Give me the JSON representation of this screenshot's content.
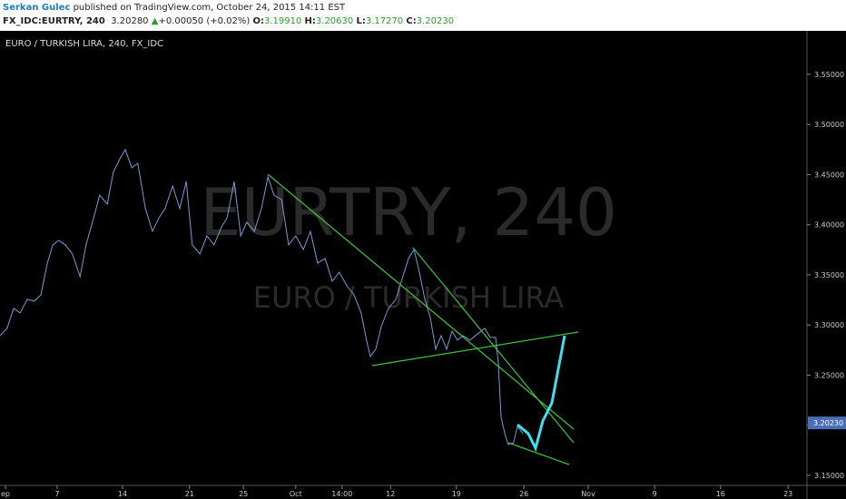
{
  "header": {
    "author": "Serkan Gulec",
    "published": "published on TradingView.com, October 24, 2015 14:11 EST",
    "symbol": "FX_IDC:EURTRY, 240",
    "last": "3.20280",
    "arrow": "▲",
    "change": "+0.00050 (+0.02%)",
    "o_label": "O:",
    "o": "3.19910",
    "h_label": "H:",
    "h": "3.20630",
    "l_label": "L:",
    "l": "3.17270",
    "c_label": "C:",
    "c": "3.20230"
  },
  "chart_data": {
    "type": "line",
    "legend_text": "EURO / TURKISH LIRA, 240, FX_IDC",
    "watermark": "EURTRY, 240",
    "watermark_sub": "EURO / TURKISH LIRA",
    "last_price_label": {
      "value": 3.2023,
      "label": "3.20230"
    },
    "x": [
      0,
      1.3,
      2.5,
      3.7,
      5,
      6.3,
      7.5,
      8.7,
      9.7,
      10.8,
      12,
      13.3,
      14.7,
      15.8,
      17.2,
      18.3,
      19.7,
      20.8,
      22,
      23,
      24.2,
      25.3,
      26.7,
      28,
      29.2,
      30.3,
      31.7,
      33,
      34.2,
      35.3,
      36.7,
      38,
      39.3,
      40.7,
      41.7,
      43,
      44.2,
      45.3,
      46.7,
      48,
      49.2,
      50.3,
      51.7,
      53,
      54.3,
      55.7,
      57,
      58.3,
      59.7,
      61,
      62.3,
      63.7,
      65,
      66.3,
      67.3,
      68,
      69,
      70,
      71.3,
      72.7,
      73.7,
      75,
      76,
      77,
      78,
      79,
      80,
      81,
      82,
      83,
      84,
      85,
      86.3,
      87.7,
      89,
      90,
      91,
      91.5,
      92,
      92.7,
      93.3,
      94.3,
      95,
      96
    ],
    "series": [
      {
        "color": "#7b9ad6",
        "values": [
          3.2894,
          3.2966,
          3.3165,
          3.312,
          3.3256,
          3.3238,
          3.3301,
          3.3618,
          3.3799,
          3.3844,
          3.3799,
          3.3708,
          3.3482,
          3.3799,
          3.407,
          3.4296,
          3.4206,
          3.4523,
          3.4658,
          3.4749,
          3.4568,
          3.4613,
          3.4161,
          3.3934,
          3.407,
          3.4161,
          3.4387,
          3.4161,
          3.4432,
          3.3799,
          3.3708,
          3.3889,
          3.3799,
          3.398,
          3.407,
          3.4432,
          3.3889,
          3.4025,
          3.3934,
          3.4161,
          3.4477,
          3.4296,
          3.4251,
          3.3799,
          3.3889,
          3.3753,
          3.3934,
          3.3618,
          3.3663,
          3.3437,
          3.3527,
          3.3391,
          3.3301,
          3.312,
          3.2848,
          3.2686,
          3.2758,
          3.2984,
          3.3165,
          3.3256,
          3.3437,
          3.3663,
          3.3753,
          3.3527,
          3.3256,
          3.3075,
          3.2758,
          3.2894,
          3.2758,
          3.2939,
          3.2848,
          3.2894,
          3.2848,
          3.2912,
          3.2966,
          3.2876,
          3.2876,
          3.2622,
          3.2079,
          3.1916,
          3.1808,
          3.1826,
          3.1989,
          3.1916
        ]
      }
    ],
    "xlim": [
      0,
      148
    ],
    "ylim": [
      3.14,
      3.5934
    ],
    "xticks": [
      {
        "value": 1,
        "label": "ep"
      },
      {
        "value": 10.5,
        "label": "7"
      },
      {
        "value": 22.5,
        "label": "14"
      },
      {
        "value": 34.8,
        "label": "21"
      },
      {
        "value": 44.7,
        "label": "25"
      },
      {
        "value": 54.3,
        "label": "Oct"
      },
      {
        "value": 62.8,
        "label": "14:00"
      },
      {
        "value": 71.7,
        "label": "12"
      },
      {
        "value": 83.8,
        "label": "19"
      },
      {
        "value": 96.2,
        "label": "26"
      },
      {
        "value": 108,
        "label": "Nov"
      },
      {
        "value": 120.2,
        "label": "9"
      },
      {
        "value": 132.3,
        "label": "16"
      },
      {
        "value": 144.7,
        "label": "23"
      }
    ],
    "yticks": [
      {
        "value": 3.15,
        "label": "3.15000"
      },
      {
        "value": 3.2,
        "label": "3.20000"
      },
      {
        "value": 3.25,
        "label": "3.25000"
      },
      {
        "value": 3.3,
        "label": "3.30000"
      },
      {
        "value": 3.35,
        "label": "3.35000"
      },
      {
        "value": 3.4,
        "label": "3.40000"
      },
      {
        "value": 3.45,
        "label": "3.45000"
      },
      {
        "value": 3.5,
        "label": "3.50000"
      },
      {
        "value": 3.55,
        "label": "3.55000"
      }
    ]
  }
}
